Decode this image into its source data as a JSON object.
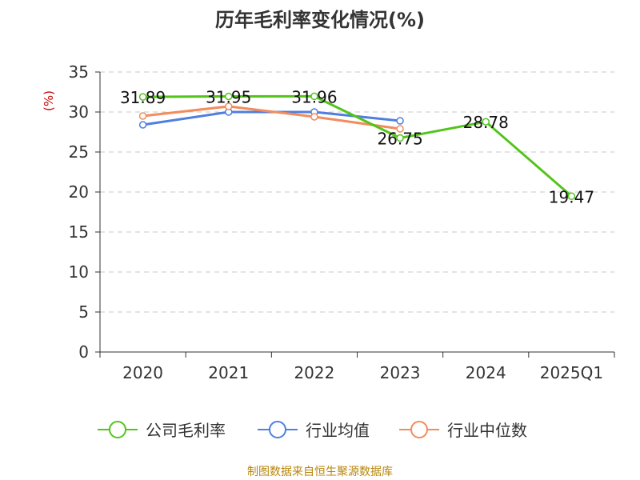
{
  "chart_data": {
    "type": "line",
    "title": "历年毛利率变化情况(%)",
    "ylabel": "(%)",
    "xlabel": "",
    "categories": [
      "2020",
      "2021",
      "2022",
      "2023",
      "2024",
      "2025Q1"
    ],
    "ylim": [
      0,
      35
    ],
    "yticks": [
      0,
      5,
      10,
      15,
      20,
      25,
      30,
      35
    ],
    "grid": true,
    "legend_position": "bottom",
    "series": [
      {
        "name": "公司毛利率",
        "color": "#52c41a",
        "values": [
          31.89,
          31.95,
          31.96,
          26.75,
          28.78,
          19.47
        ],
        "labels": [
          "31.89",
          "31.95",
          "31.96",
          "26.75",
          "28.78",
          "19.47"
        ]
      },
      {
        "name": "行业均值",
        "color": "#4f7fde",
        "values": [
          28.4,
          30.0,
          30.0,
          28.9,
          null,
          null
        ]
      },
      {
        "name": "行业中位数",
        "color": "#f28c5c",
        "values": [
          29.5,
          30.7,
          29.4,
          27.9,
          null,
          null
        ]
      }
    ]
  },
  "source": "制图数据来自恒生聚源数据库"
}
